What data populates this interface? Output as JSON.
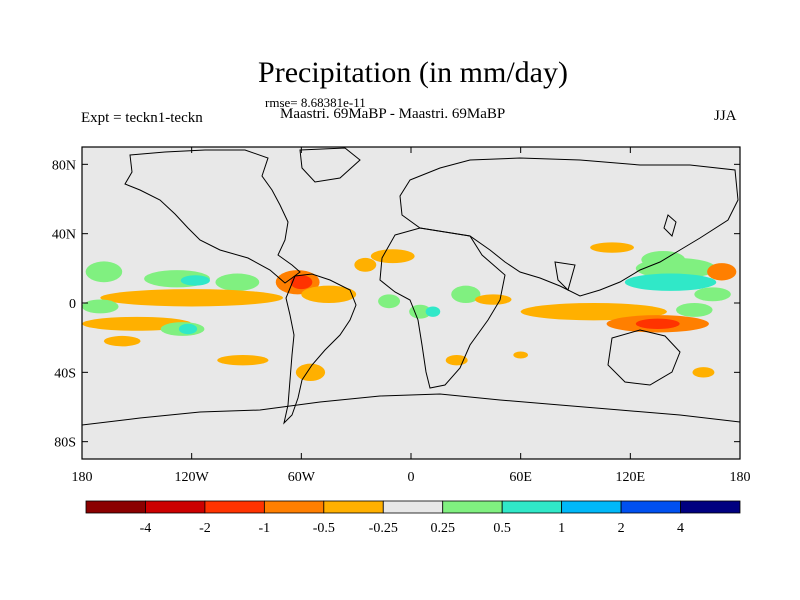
{
  "title": "Precipitation (in mm/day)",
  "rmse": "rmse= 8.68381e-11",
  "expt": "Expt = teckn1-teckn",
  "subtitle": "Maastri.  69MaBP - Maastri.  69MaBP",
  "season": "JJA",
  "colors": {
    "background": "#e8e8e8",
    "coast": "#000000",
    "levels": [
      "#8b0000",
      "#cc0000",
      "#ff3300",
      "#ff7f00",
      "#ffb000",
      "#e8e8e8",
      "#80f080",
      "#30e8c8",
      "#00b8f8",
      "#0050f0",
      "#000080"
    ]
  },
  "chart_data": {
    "type": "map-contour",
    "field": "Precipitation difference",
    "units": "mm/day",
    "x_ticks": [
      "180",
      "120W",
      "60W",
      "0",
      "60E",
      "120E",
      "180"
    ],
    "y_ticks": [
      "80N",
      "40N",
      "0",
      "40S",
      "80S"
    ],
    "lon_range": [
      -180,
      180
    ],
    "lat_range": [
      -90,
      90
    ],
    "colorbar_labels": [
      "-4",
      "-2",
      "-1",
      "-0.5",
      "-0.25",
      "0.25",
      "0.5",
      "1",
      "2",
      "4"
    ],
    "anomaly_patches": [
      {
        "lon": -168,
        "lat": 18,
        "rx": 10,
        "ry": 6,
        "level": 6
      },
      {
        "lon": -128,
        "lat": 14,
        "rx": 18,
        "ry": 5,
        "level": 6
      },
      {
        "lon": -118,
        "lat": 13,
        "rx": 8,
        "ry": 3,
        "level": 7
      },
      {
        "lon": -95,
        "lat": 12,
        "rx": 12,
        "ry": 5,
        "level": 6
      },
      {
        "lon": -62,
        "lat": 12,
        "rx": 12,
        "ry": 7,
        "level": 3
      },
      {
        "lon": -60,
        "lat": 12,
        "rx": 6,
        "ry": 4,
        "level": 2
      },
      {
        "lon": -120,
        "lat": 3,
        "rx": 50,
        "ry": 5,
        "level": 4
      },
      {
        "lon": -45,
        "lat": 5,
        "rx": 15,
        "ry": 5,
        "level": 4
      },
      {
        "lon": -170,
        "lat": -2,
        "rx": 10,
        "ry": 4,
        "level": 6
      },
      {
        "lon": -150,
        "lat": -12,
        "rx": 30,
        "ry": 4,
        "level": 4
      },
      {
        "lon": -125,
        "lat": -15,
        "rx": 12,
        "ry": 4,
        "level": 6
      },
      {
        "lon": -122,
        "lat": -15,
        "rx": 5,
        "ry": 3,
        "level": 7
      },
      {
        "lon": -158,
        "lat": -22,
        "rx": 10,
        "ry": 3,
        "level": 4
      },
      {
        "lon": -92,
        "lat": -33,
        "rx": 14,
        "ry": 3,
        "level": 4
      },
      {
        "lon": -55,
        "lat": -40,
        "rx": 8,
        "ry": 5,
        "level": 4
      },
      {
        "lon": -125,
        "lat": -52,
        "rx": 11,
        "ry": 8,
        "level": 5
      },
      {
        "lon": -90,
        "lat": -50,
        "rx": 10,
        "ry": 4,
        "level": 5
      },
      {
        "lon": -10,
        "lat": 27,
        "rx": 12,
        "ry": 4,
        "level": 4
      },
      {
        "lon": -25,
        "lat": 22,
        "rx": 6,
        "ry": 4,
        "level": 4
      },
      {
        "lon": -5,
        "lat": 10,
        "rx": 8,
        "ry": 5,
        "level": 5
      },
      {
        "lon": -12,
        "lat": 1,
        "rx": 6,
        "ry": 4,
        "level": 6
      },
      {
        "lon": 10,
        "lat": 38,
        "rx": 10,
        "ry": 3,
        "level": 5
      },
      {
        "lon": 25,
        "lat": 13,
        "rx": 10,
        "ry": 4,
        "level": 5
      },
      {
        "lon": 30,
        "lat": 5,
        "rx": 8,
        "ry": 5,
        "level": 6
      },
      {
        "lon": 5,
        "lat": -5,
        "rx": 6,
        "ry": 4,
        "level": 6
      },
      {
        "lon": 12,
        "lat": -5,
        "rx": 4,
        "ry": 3,
        "level": 7
      },
      {
        "lon": 8,
        "lat": -48,
        "rx": 14,
        "ry": 3,
        "level": 5
      },
      {
        "lon": 25,
        "lat": -33,
        "rx": 6,
        "ry": 3,
        "level": 4
      },
      {
        "lon": 45,
        "lat": 2,
        "rx": 10,
        "ry": 3,
        "level": 4
      },
      {
        "lon": 110,
        "lat": 32,
        "rx": 12,
        "ry": 3,
        "level": 4
      },
      {
        "lon": 140,
        "lat": 40,
        "rx": 6,
        "ry": 3,
        "level": 5
      },
      {
        "lon": 138,
        "lat": 25,
        "rx": 12,
        "ry": 5,
        "level": 6
      },
      {
        "lon": 145,
        "lat": 20,
        "rx": 22,
        "ry": 6,
        "level": 6
      },
      {
        "lon": 142,
        "lat": 12,
        "rx": 25,
        "ry": 5,
        "level": 7
      },
      {
        "lon": 170,
        "lat": 18,
        "rx": 8,
        "ry": 5,
        "level": 3
      },
      {
        "lon": 165,
        "lat": 5,
        "rx": 10,
        "ry": 4,
        "level": 6
      },
      {
        "lon": 100,
        "lat": -5,
        "rx": 40,
        "ry": 5,
        "level": 4
      },
      {
        "lon": 135,
        "lat": -12,
        "rx": 28,
        "ry": 5,
        "level": 3
      },
      {
        "lon": 135,
        "lat": -12,
        "rx": 12,
        "ry": 3,
        "level": 2
      },
      {
        "lon": 155,
        "lat": -4,
        "rx": 10,
        "ry": 4,
        "level": 6
      },
      {
        "lon": 160,
        "lat": -40,
        "rx": 6,
        "ry": 3,
        "level": 4
      },
      {
        "lon": 60,
        "lat": -30,
        "rx": 4,
        "ry": 2,
        "level": 4
      }
    ]
  }
}
